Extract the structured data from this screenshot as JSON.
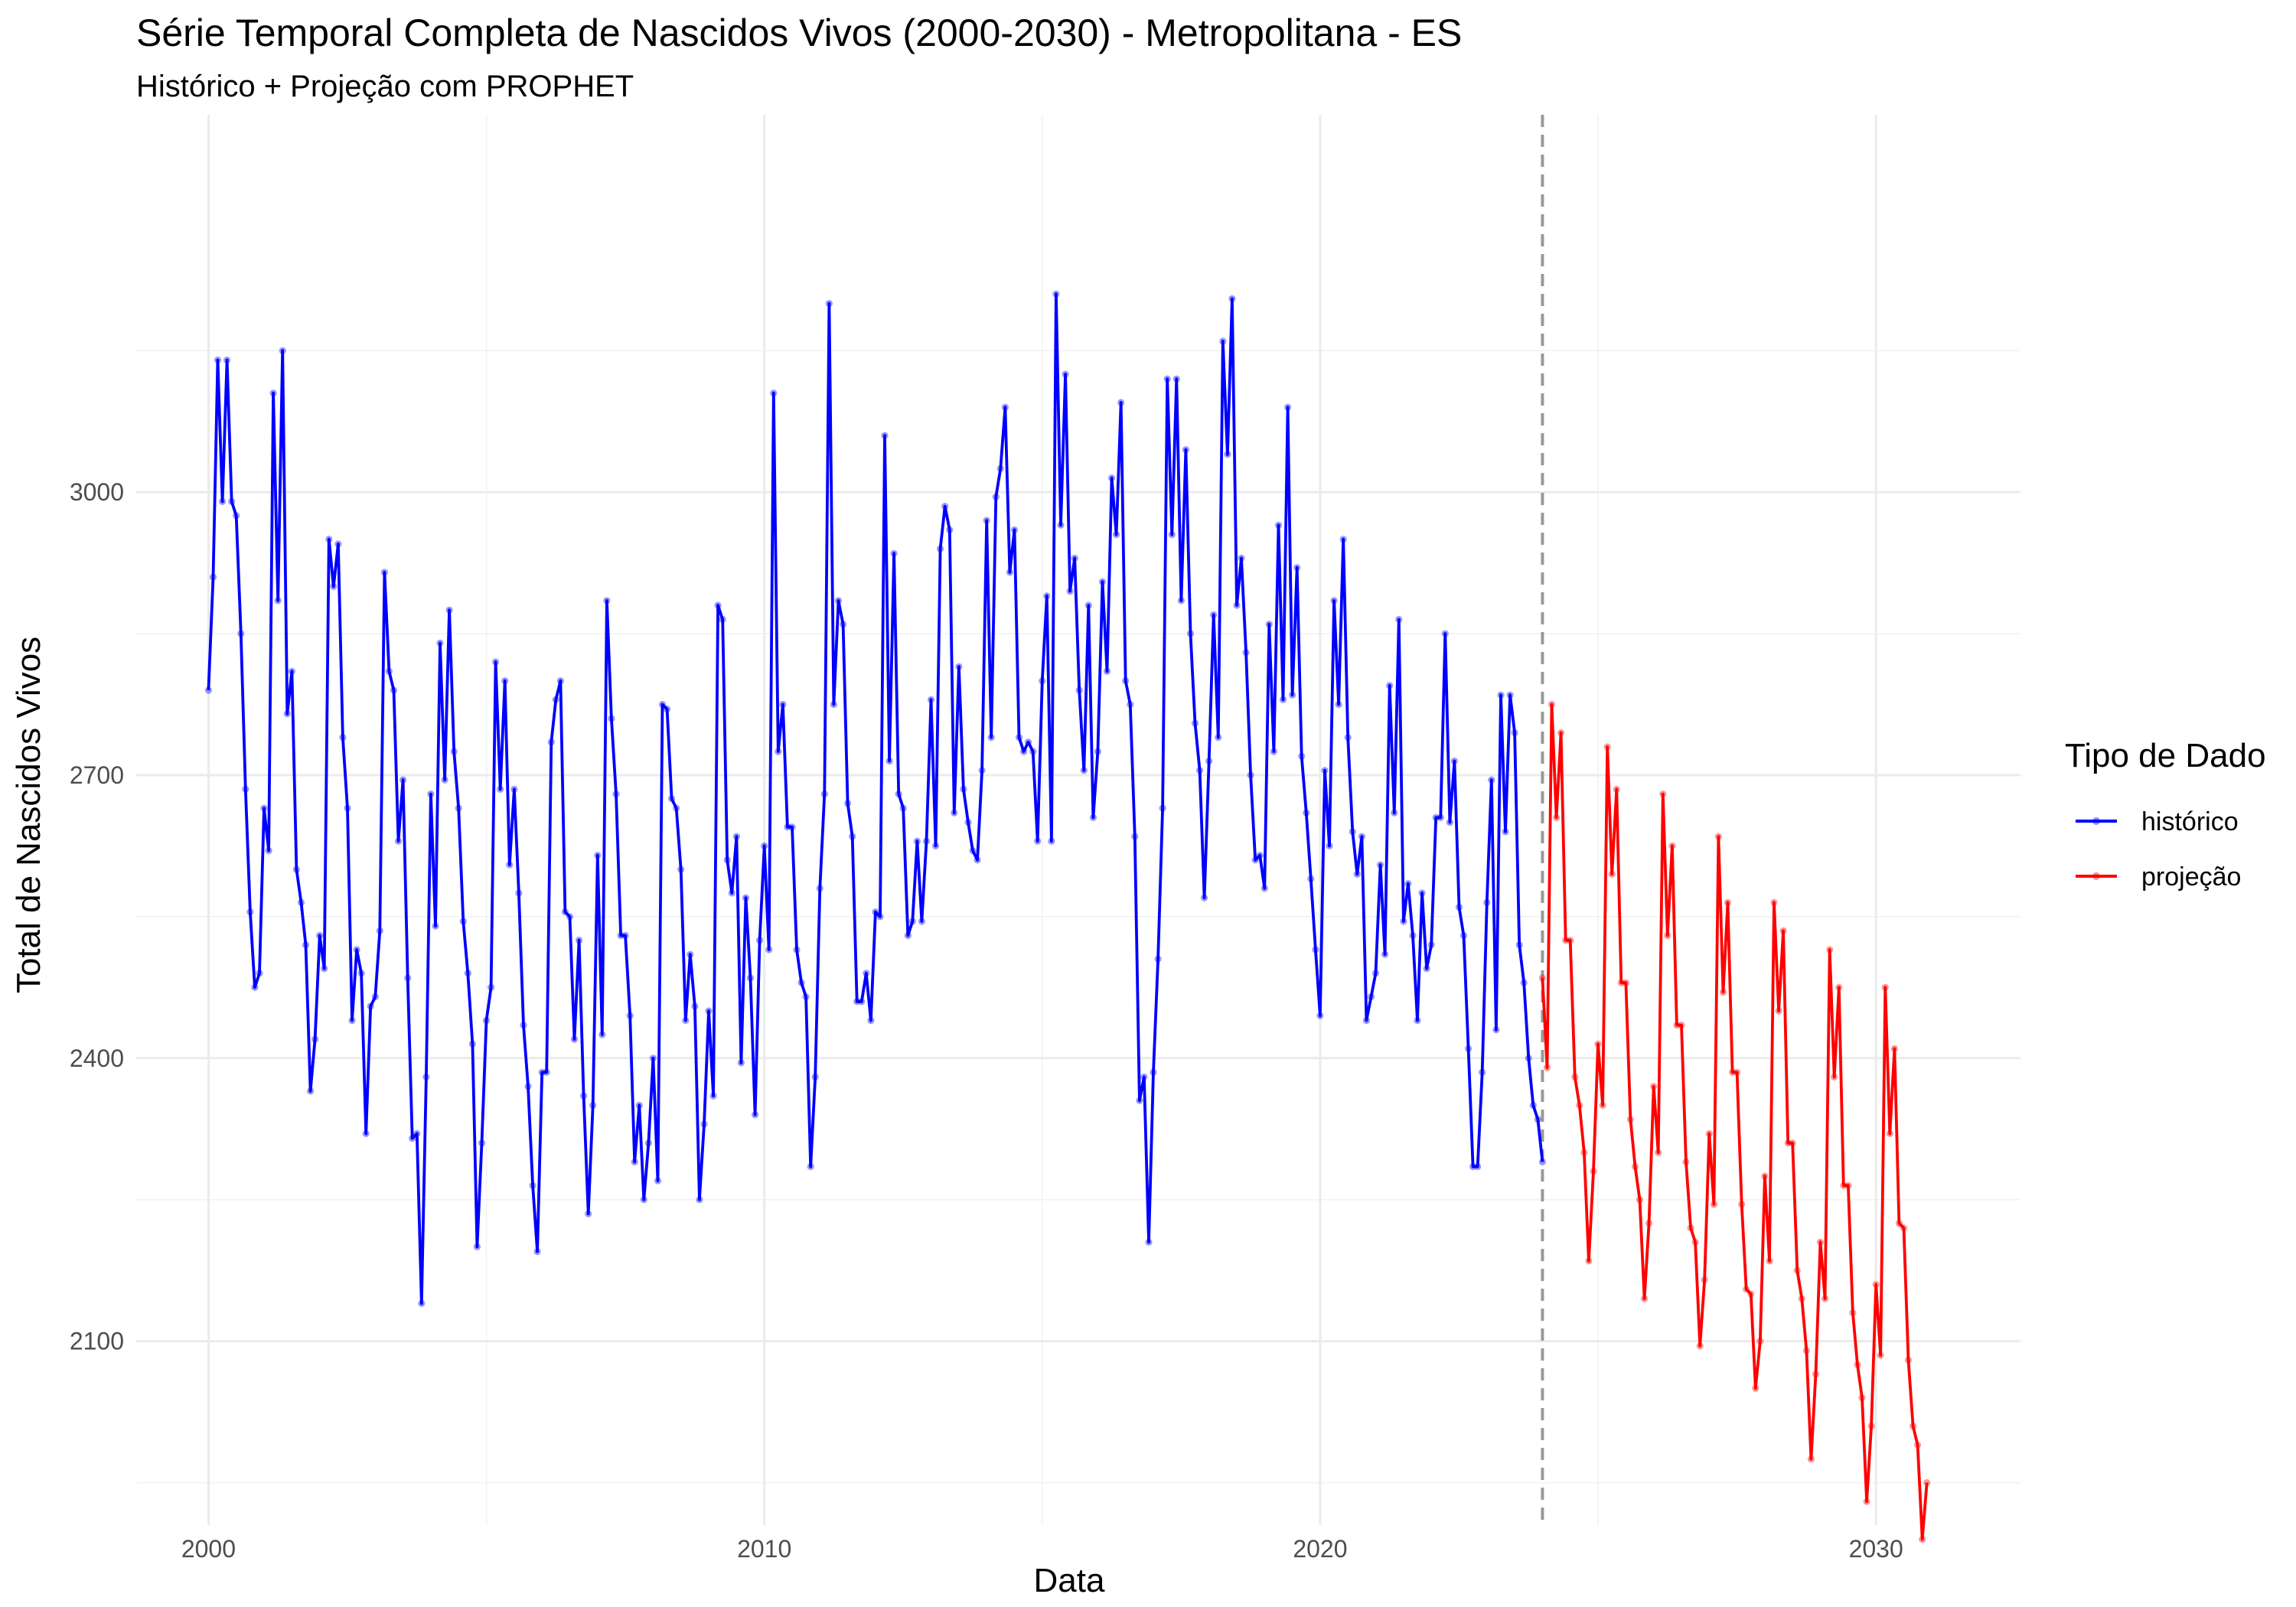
{
  "chart_data": {
    "type": "line",
    "title": "Série Temporal Completa de Nascidos Vivos (2000-2030) -  Metropolitana - ES",
    "subtitle": "Histórico + Projeção com PROPHET",
    "xlabel": "Data",
    "ylabel": "Total de Nascidos Vivos",
    "xlim": [
      1998.7,
      2032.6
    ],
    "ylim": [
      1905,
      3400
    ],
    "x_ticks": [
      2000,
      2010,
      2020,
      2030
    ],
    "x_tick_labels": [
      "2000",
      "2010",
      "2020",
      "2030"
    ],
    "y_ticks": [
      2100,
      2400,
      2700,
      3000
    ],
    "y_tick_labels": [
      "2100",
      "2400",
      "2700",
      "3000"
    ],
    "grid": true,
    "legend": {
      "title": "Tipo de Dado",
      "position": "right",
      "entries": [
        {
          "label": "histórico",
          "color": "#0000ff"
        },
        {
          "label": "projeção",
          "color": "#ff0000"
        }
      ]
    },
    "vline": {
      "x": 2024.0,
      "color": "#999999",
      "style": "dashed"
    },
    "series": [
      {
        "name": "histórico",
        "color": "#0000ff",
        "x_start": 2000.0,
        "x_step_months": 1,
        "values": [
          2790,
          2910,
          3140,
          2990,
          3140,
          2990,
          2975,
          2850,
          2685,
          2555,
          2475,
          2490,
          2665,
          2620,
          3105,
          2885,
          3150,
          2765,
          2810,
          2600,
          2565,
          2520,
          2365,
          2420,
          2530,
          2495,
          2950,
          2900,
          2945,
          2740,
          2665,
          2440,
          2515,
          2490,
          2320,
          2455,
          2465,
          2535,
          2915,
          2810,
          2790,
          2630,
          2695,
          2485,
          2315,
          2320,
          2140,
          2380,
          2680,
          2540,
          2840,
          2695,
          2875,
          2725,
          2665,
          2545,
          2490,
          2415,
          2200,
          2310,
          2440,
          2475,
          2820,
          2685,
          2800,
          2605,
          2685,
          2575,
          2435,
          2370,
          2265,
          2195,
          2385,
          2385,
          2735,
          2780,
          2800,
          2555,
          2550,
          2420,
          2525,
          2360,
          2235,
          2350,
          2615,
          2425,
          2885,
          2760,
          2680,
          2530,
          2530,
          2445,
          2290,
          2350,
          2250,
          2310,
          2400,
          2270,
          2775,
          2770,
          2675,
          2665,
          2600,
          2440,
          2510,
          2455,
          2250,
          2330,
          2450,
          2360,
          2880,
          2865,
          2610,
          2575,
          2635,
          2395,
          2570,
          2485,
          2340,
          2525,
          2625,
          2515,
          3105,
          2725,
          2775,
          2645,
          2645,
          2515,
          2480,
          2465,
          2285,
          2380,
          2580,
          2680,
          3200,
          2775,
          2885,
          2860,
          2670,
          2635,
          2460,
          2460,
          2490,
          2440,
          2555,
          2550,
          3060,
          2715,
          2935,
          2680,
          2665,
          2530,
          2545,
          2630,
          2545,
          2630,
          2780,
          2625,
          2940,
          2985,
          2960,
          2660,
          2815,
          2685,
          2650,
          2620,
          2610,
          2705,
          2970,
          2740,
          2995,
          3025,
          3090,
          2915,
          2960,
          2740,
          2725,
          2735,
          2725,
          2630,
          2800,
          2890,
          2630,
          3210,
          2965,
          3125,
          2895,
          2930,
          2790,
          2705,
          2880,
          2655,
          2725,
          2905,
          2810,
          3015,
          2955,
          3095,
          2800,
          2775,
          2635,
          2355,
          2380,
          2205,
          2385,
          2505,
          2665,
          3120,
          2955,
          3120,
          2885,
          3045,
          2850,
          2755,
          2705,
          2570,
          2715,
          2870,
          2740,
          3160,
          3040,
          3205,
          2880,
          2930,
          2830,
          2700,
          2610,
          2615,
          2580,
          2860,
          2725,
          2965,
          2780,
          3090,
          2785,
          2920,
          2720,
          2660,
          2590,
          2515,
          2445,
          2705,
          2625,
          2885,
          2775,
          2950,
          2740,
          2640,
          2595,
          2635,
          2440,
          2465,
          2490,
          2605,
          2510,
          2795,
          2660,
          2865,
          2545,
          2585,
          2530,
          2440,
          2575,
          2495,
          2520,
          2655,
          2655,
          2850,
          2650,
          2715,
          2560,
          2530,
          2410,
          2285,
          2285,
          2385,
          2565,
          2695,
          2430,
          2785,
          2640,
          2785,
          2745,
          2520,
          2480,
          2400,
          2350,
          2335,
          2290
        ]
      },
      {
        "name": "projeção",
        "color": "#ff0000",
        "x_start": 2024.0,
        "x_step_months": 1,
        "values": [
          2485,
          2390,
          2775,
          2655,
          2745,
          2525,
          2525,
          2380,
          2350,
          2300,
          2185,
          2280,
          2415,
          2350,
          2730,
          2595,
          2685,
          2480,
          2480,
          2335,
          2285,
          2250,
          2145,
          2225,
          2370,
          2300,
          2680,
          2530,
          2625,
          2435,
          2435,
          2290,
          2220,
          2205,
          2095,
          2165,
          2320,
          2245,
          2635,
          2470,
          2565,
          2385,
          2385,
          2245,
          2155,
          2150,
          2050,
          2100,
          2275,
          2185,
          2565,
          2450,
          2535,
          2310,
          2310,
          2175,
          2145,
          2090,
          1975,
          2065,
          2205,
          2145,
          2515,
          2380,
          2475,
          2265,
          2265,
          2130,
          2075,
          2040,
          1930,
          2010,
          2160,
          2085,
          2475,
          2320,
          2410,
          2225,
          2220,
          2080,
          2010,
          1990,
          1890,
          1950
        ]
      }
    ]
  }
}
